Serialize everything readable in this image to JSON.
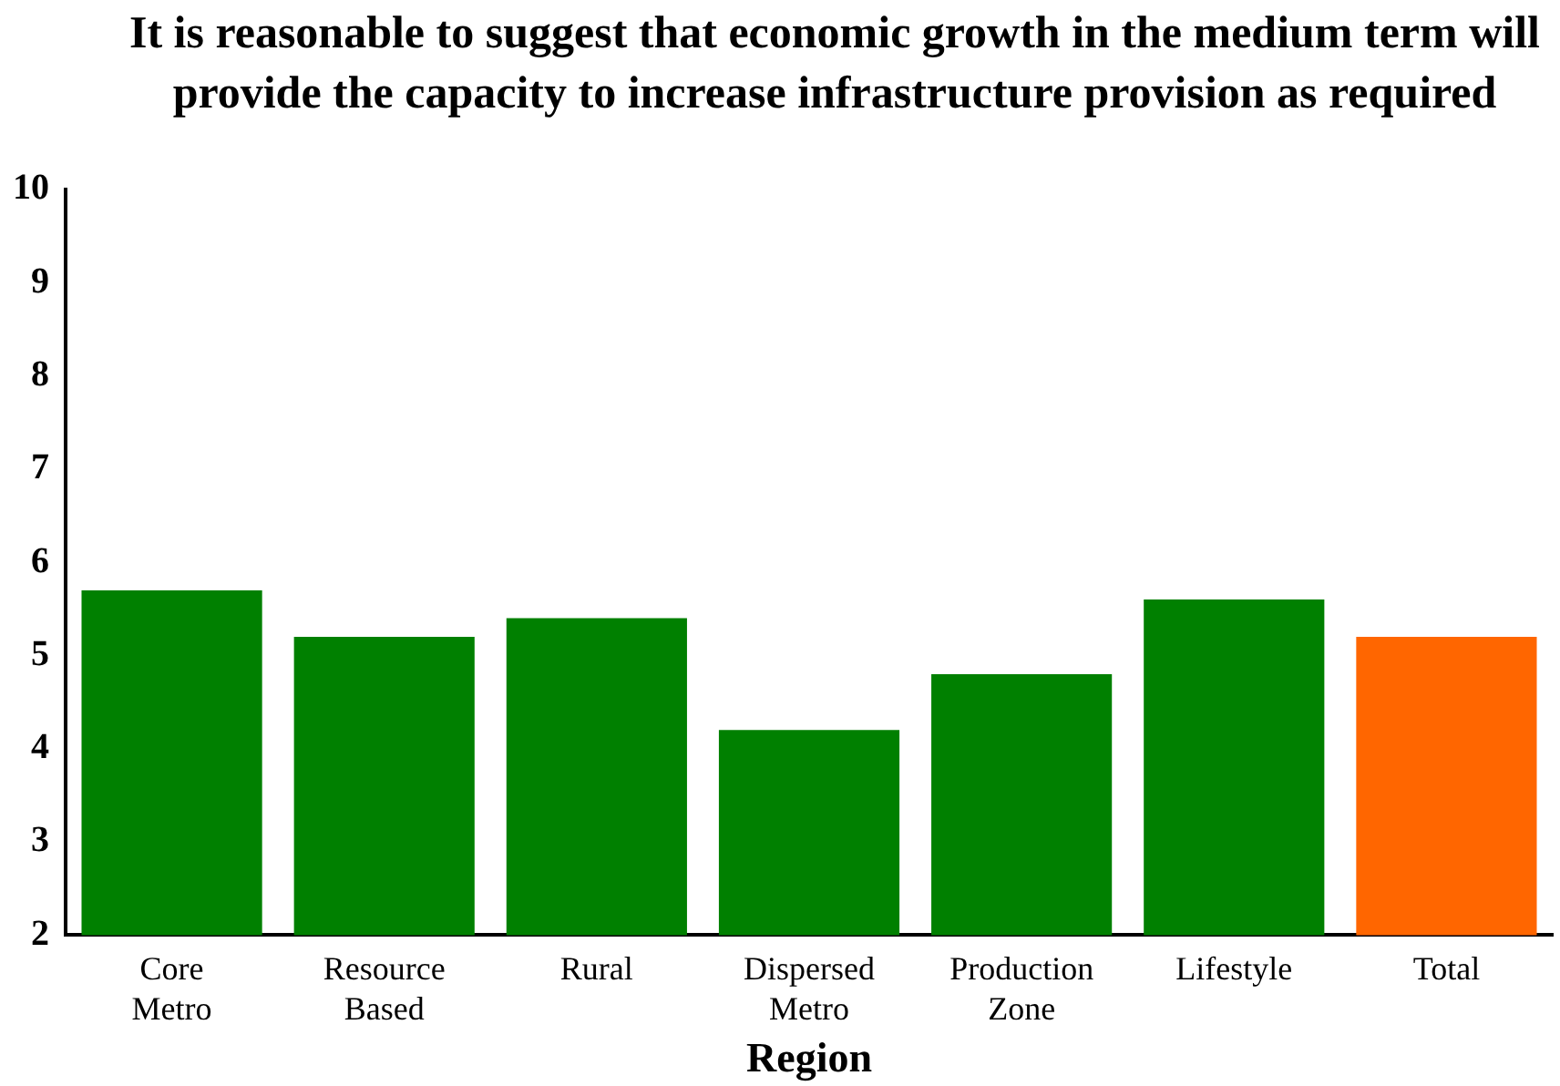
{
  "chart_data": {
    "type": "bar",
    "title": "It is reasonable to suggest that economic growth in the medium term will provide the capacity to increase infrastructure provision as required",
    "xlabel": "Region",
    "categories": [
      "Core Metro",
      "Resource Based",
      "Rural",
      "Dispersed Metro",
      "Production Zone",
      "Lifestyle",
      "Total"
    ],
    "values": [
      5.7,
      5.2,
      5.4,
      4.2,
      4.8,
      5.6,
      5.2
    ],
    "colors": [
      "#008000",
      "#008000",
      "#008000",
      "#008000",
      "#008000",
      "#008000",
      "#ff6600"
    ],
    "ylim": [
      2,
      10
    ],
    "yticks": [
      2,
      3,
      4,
      5,
      6,
      7,
      8,
      9,
      10
    ],
    "grid": false,
    "legend": false
  }
}
